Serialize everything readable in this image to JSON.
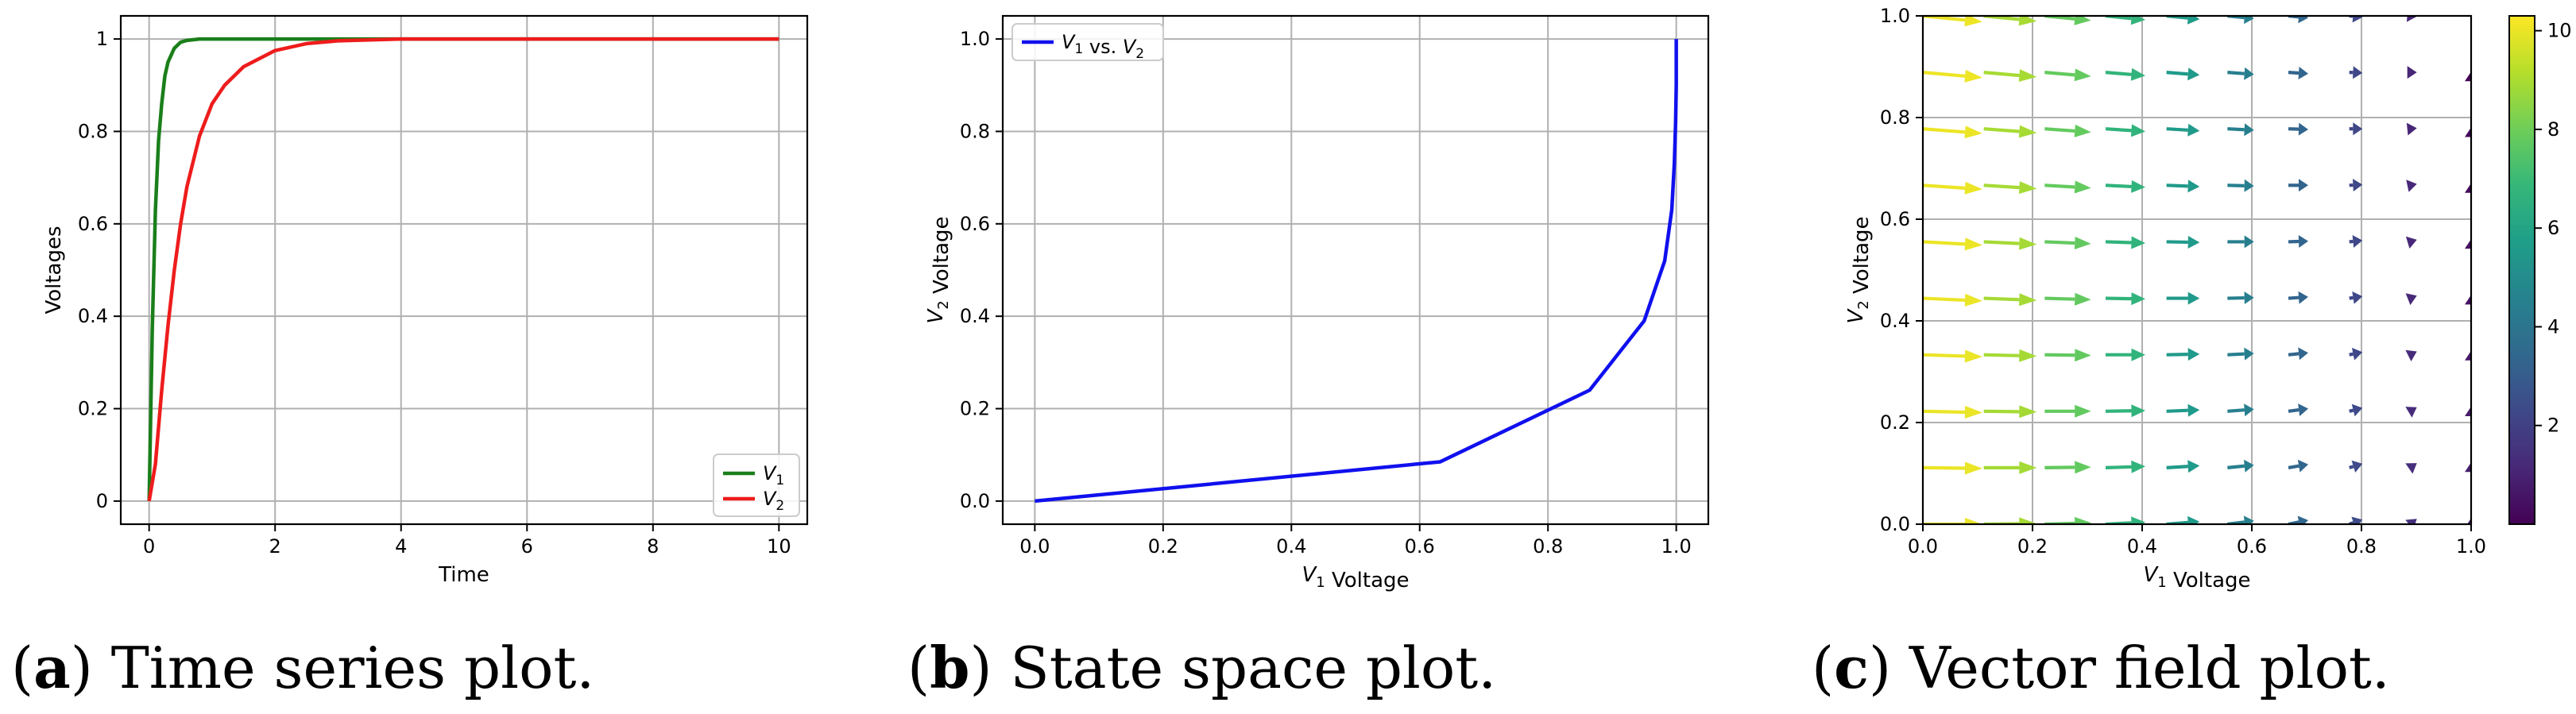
{
  "colors": {
    "v1": "#1a7f1a",
    "v2": "#ee1c1c",
    "state": "#1010ee",
    "grid": "#b0b0b0",
    "axis": "#000000",
    "colormap": [
      "#440154",
      "#482878",
      "#3e4989",
      "#31688e",
      "#26828e",
      "#1f9e89",
      "#35b779",
      "#6ece58",
      "#b5de2b",
      "#fde725"
    ]
  },
  "captions": [
    {
      "letter": "a",
      "text": " Time series plot."
    },
    {
      "letter": "b",
      "text": " State space plot."
    },
    {
      "letter": "c",
      "text": " Vector field plot."
    }
  ],
  "chart_data": [
    {
      "type": "line",
      "title": "",
      "xlabel": "Time",
      "ylabel": "Voltages",
      "xlim": [
        -0.45,
        10.45
      ],
      "ylim": [
        -0.05,
        1.05
      ],
      "xticks": [
        0,
        2,
        4,
        6,
        8,
        10
      ],
      "yticks": [
        0.0,
        0.2,
        0.4,
        0.6,
        0.8,
        1.0
      ],
      "grid": true,
      "legend": "lower-right",
      "series": [
        {
          "name": "V1",
          "color_key": "v1",
          "x": [
            0,
            0.05,
            0.1,
            0.15,
            0.2,
            0.25,
            0.3,
            0.4,
            0.5,
            0.6,
            0.8,
            1.0,
            2.0,
            4.0,
            6.0,
            8.0,
            10.0
          ],
          "y": [
            0,
            0.37,
            0.63,
            0.78,
            0.86,
            0.92,
            0.95,
            0.98,
            0.993,
            0.997,
            1.0,
            1.0,
            1.0,
            1.0,
            1.0,
            1.0,
            1.0
          ]
        },
        {
          "name": "V2",
          "color_key": "v2",
          "x": [
            0,
            0.1,
            0.2,
            0.3,
            0.4,
            0.5,
            0.6,
            0.8,
            1.0,
            1.2,
            1.5,
            2.0,
            2.5,
            3.0,
            3.5,
            4.0,
            6.0,
            8.0,
            10.0
          ],
          "y": [
            0,
            0.08,
            0.24,
            0.38,
            0.5,
            0.6,
            0.68,
            0.79,
            0.86,
            0.9,
            0.94,
            0.975,
            0.99,
            0.996,
            0.998,
            1.0,
            1.0,
            1.0,
            1.0
          ]
        }
      ]
    },
    {
      "type": "line",
      "title": "",
      "xlabel": "V1 Voltage",
      "ylabel": "V2 Voltage",
      "xlim": [
        -0.05,
        1.05
      ],
      "ylim": [
        -0.05,
        1.05
      ],
      "xticks": [
        0.0,
        0.2,
        0.4,
        0.6,
        0.8,
        1.0
      ],
      "yticks": [
        0.0,
        0.2,
        0.4,
        0.6,
        0.8,
        1.0
      ],
      "grid": true,
      "legend": "upper-left",
      "series": [
        {
          "name": "V1 vs. V2",
          "color_key": "state",
          "x": [
            0,
            0.632,
            0.865,
            0.95,
            0.982,
            0.993,
            0.997,
            0.999,
            1.0,
            1.0
          ],
          "y": [
            0,
            0.085,
            0.24,
            0.39,
            0.52,
            0.63,
            0.73,
            0.82,
            0.9,
            1.0
          ]
        }
      ]
    },
    {
      "type": "quiver",
      "title": "",
      "xlabel": "V1 Voltage",
      "ylabel": "V2 Voltage",
      "xlim": [
        0.0,
        1.0
      ],
      "ylim": [
        0.0,
        1.0
      ],
      "xticks": [
        0.0,
        0.2,
        0.4,
        0.6,
        0.8,
        1.0
      ],
      "yticks": [
        0.0,
        0.2,
        0.4,
        0.6,
        0.8,
        1.0
      ],
      "grid": true,
      "grid_x": [
        0.0,
        0.1111,
        0.2222,
        0.3333,
        0.4444,
        0.5556,
        0.6667,
        0.7778,
        0.8889,
        1.0
      ],
      "grid_y": [
        0.0,
        0.1111,
        0.2222,
        0.3333,
        0.4444,
        0.5556,
        0.6667,
        0.7778,
        0.8889,
        1.0
      ],
      "field": {
        "dv1": "10*(1 - V1)",
        "dv2": "V1 - V2"
      },
      "colorbar": {
        "min": 0.0,
        "max": 10.3,
        "ticks": [
          2,
          4,
          6,
          8,
          10
        ]
      }
    }
  ]
}
